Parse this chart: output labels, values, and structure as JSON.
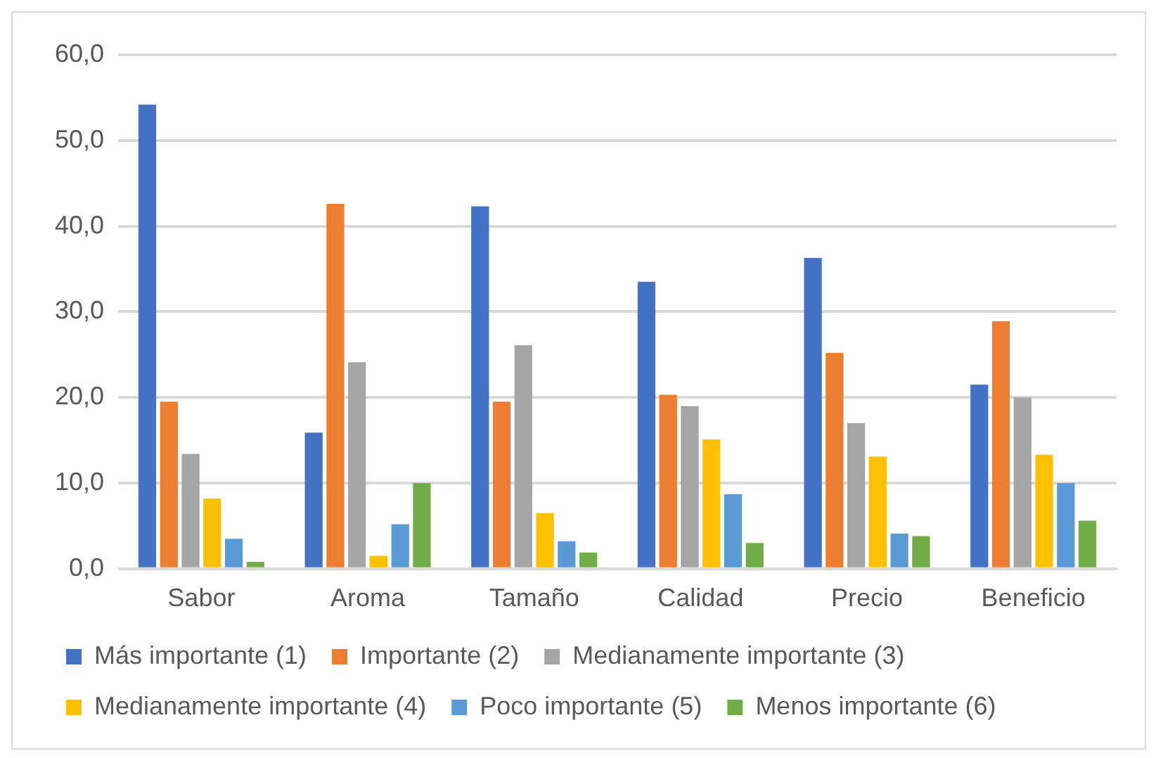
{
  "chart_data": {
    "type": "bar",
    "categories": [
      "Sabor",
      "Aroma",
      "Tamaño",
      "Calidad",
      "Precio",
      "Beneficio"
    ],
    "series": [
      {
        "name": "Más importante (1)",
        "color": "#4472c4",
        "values": [
          54.2,
          15.9,
          42.3,
          33.5,
          36.3,
          21.5
        ]
      },
      {
        "name": "Importante (2)",
        "color": "#ed7d31",
        "values": [
          19.5,
          42.6,
          19.5,
          20.3,
          25.2,
          28.9
        ]
      },
      {
        "name": "Medianamente importante (3)",
        "color": "#a5a5a5",
        "values": [
          13.4,
          24.1,
          26.1,
          19.0,
          17.0,
          20.0
        ]
      },
      {
        "name": "Medianamente importante (4)",
        "color": "#ffc000",
        "values": [
          8.2,
          1.5,
          6.5,
          15.1,
          13.1,
          13.3
        ]
      },
      {
        "name": "Poco importante (5)",
        "color": "#5b9bd5",
        "values": [
          3.5,
          5.2,
          3.2,
          8.7,
          4.1,
          10.0
        ]
      },
      {
        "name": "Menos importante (6)",
        "color": "#70ad47",
        "values": [
          0.8,
          10.0,
          1.9,
          3.0,
          3.8,
          5.6
        ]
      }
    ],
    "ylim": [
      0,
      60
    ],
    "yticks": [
      {
        "value": 0,
        "label": "0,0"
      },
      {
        "value": 10,
        "label": "10,0"
      },
      {
        "value": 20,
        "label": "20,0"
      },
      {
        "value": 30,
        "label": "30,0"
      },
      {
        "value": 40,
        "label": "40,0"
      },
      {
        "value": 50,
        "label": "50,0"
      },
      {
        "value": 60,
        "label": "60,0"
      }
    ],
    "grid": "y",
    "legend": "bottom"
  }
}
